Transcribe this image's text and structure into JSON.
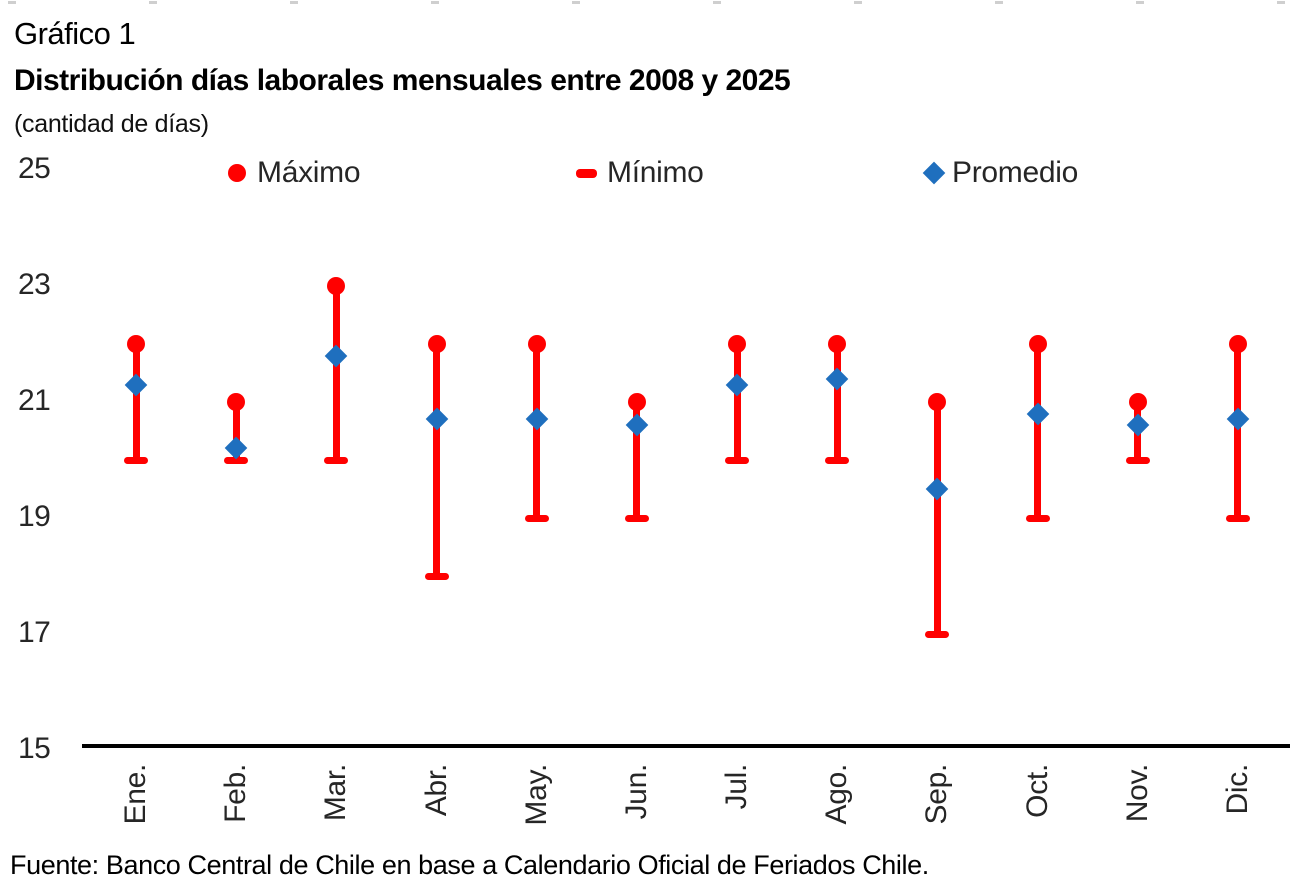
{
  "header": {
    "label": "Gráfico 1",
    "title": "Distribución días laborales mensuales entre 2008 y 2025",
    "subtitle": "(cantidad de días)"
  },
  "footer": {
    "source": "Fuente: Banco Central de Chile en base a Calendario Oficial de Feriados Chile."
  },
  "colors": {
    "max_min_red": "#ff0000",
    "promedio_blue": "#1f6fbe",
    "axis_black": "#000000",
    "top_dash_gray": "#cfcfcf"
  },
  "chart_data": {
    "type": "range",
    "title": "Distribución días laborales mensuales entre 2008 y 2025",
    "units_label": "(cantidad de días)",
    "categories": [
      "Ene.",
      "Feb.",
      "Mar.",
      "Abr.",
      "May.",
      "Jun.",
      "Jul.",
      "Ago.",
      "Sep.",
      "Oct.",
      "Nov.",
      "Dic."
    ],
    "series": [
      {
        "name": "Máximo",
        "marker": "red-circle",
        "values": [
          22,
          21,
          23,
          22,
          22,
          21,
          22,
          22,
          21,
          22,
          21,
          22
        ]
      },
      {
        "name": "Mínimo",
        "marker": "red-dash",
        "values": [
          20,
          20,
          20,
          18,
          19,
          19,
          20,
          20,
          17,
          19,
          20,
          19
        ]
      },
      {
        "name": "Promedio",
        "marker": "blue-diamond",
        "values": [
          21.3,
          20.2,
          21.8,
          20.7,
          20.7,
          20.6,
          21.3,
          21.4,
          19.5,
          20.8,
          20.6,
          20.7
        ]
      }
    ],
    "ylim": [
      15,
      25
    ],
    "yticks": [
      15,
      17,
      19,
      21,
      23,
      25
    ],
    "grid": false,
    "legend_position": "top"
  }
}
